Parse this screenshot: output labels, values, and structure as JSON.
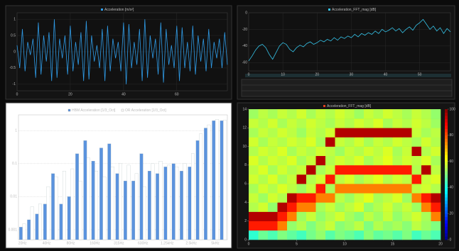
{
  "chart_data": [
    {
      "type": "line",
      "title": "Acceleration [m/s²]",
      "color": "#2f9be6",
      "x": [
        0,
        1,
        2,
        3,
        4,
        5,
        6,
        7,
        8,
        9,
        10,
        11,
        12,
        13,
        14,
        15,
        16,
        17,
        18,
        19,
        20,
        21,
        22,
        23,
        24,
        25,
        26,
        27,
        28,
        29,
        30,
        31,
        32,
        33,
        34,
        35,
        36,
        37,
        38,
        39,
        40,
        41,
        42,
        43,
        44,
        45,
        46,
        47,
        48,
        49,
        50,
        51,
        52,
        53,
        54,
        55,
        56,
        57,
        58,
        59,
        60,
        61,
        62,
        63,
        64,
        65,
        66,
        67,
        68,
        69,
        70,
        71,
        72,
        73,
        74,
        75,
        76,
        77,
        78,
        79
      ],
      "values": [
        0.2,
        -0.5,
        0.7,
        -0.6,
        0.3,
        -0.1,
        0.4,
        -0.8,
        0.9,
        -0.7,
        0.5,
        -0.3,
        0.6,
        -0.9,
        1.0,
        -0.8,
        0.4,
        -0.2,
        0.5,
        -0.7,
        0.8,
        -0.6,
        0.3,
        -0.4,
        0.6,
        -0.9,
        0.95,
        -0.85,
        0.5,
        -0.3,
        0.2,
        -0.5,
        0.7,
        -0.9,
        0.8,
        -0.6,
        0.4,
        -0.2,
        0.3,
        -0.6,
        0.9,
        -1.0,
        0.85,
        -0.5,
        0.3,
        -0.4,
        0.7,
        -0.9,
        1.0,
        -0.8,
        0.5,
        -0.2,
        0.4,
        -0.7,
        0.9,
        -0.95,
        0.7,
        -0.4,
        0.2,
        -0.5,
        0.8,
        -0.9,
        0.75,
        -0.5,
        0.3,
        -0.6,
        0.8,
        -0.7,
        0.5,
        -0.3,
        0.4,
        -0.6,
        0.7,
        -0.5,
        0.3,
        -0.2,
        0.4,
        -0.5,
        0.6,
        -0.4
      ],
      "xlim": [
        0,
        79
      ],
      "xticks": [
        0,
        20,
        40,
        60
      ],
      "ylim": [
        -1.2,
        1.2
      ],
      "yticks": [
        -1,
        -0.5,
        0,
        0.5,
        1
      ]
    },
    {
      "type": "line",
      "title": "Acceleration_FFT_mag [dB]",
      "color": "#35c3e8",
      "x": [
        0,
        1,
        2,
        3,
        4,
        5,
        6,
        7,
        8,
        9,
        10,
        11,
        12,
        13,
        14,
        15,
        16,
        17,
        18,
        19,
        20,
        21,
        22,
        23,
        24,
        25,
        26,
        27,
        28,
        29,
        30,
        31,
        32,
        33,
        34,
        35,
        36,
        37,
        38,
        39,
        40,
        41,
        42,
        43,
        44,
        45,
        46,
        47,
        48,
        49,
        50,
        51,
        52,
        53,
        54,
        55,
        56,
        57,
        58,
        59
      ],
      "values": [
        -58,
        -52,
        -45,
        -40,
        -38,
        -42,
        -50,
        -56,
        -48,
        -40,
        -36,
        -38,
        -44,
        -47,
        -42,
        -39,
        -41,
        -37,
        -35,
        -38,
        -36,
        -33,
        -35,
        -32,
        -34,
        -30,
        -33,
        -29,
        -31,
        -28,
        -30,
        -26,
        -29,
        -25,
        -27,
        -24,
        -26,
        -22,
        -25,
        -20,
        -23,
        -21,
        -18,
        -22,
        -19,
        -24,
        -20,
        -17,
        -21,
        -15,
        -12,
        -8,
        -14,
        -20,
        -16,
        -22,
        -18,
        -25,
        -19,
        -23
      ],
      "xlim": [
        0,
        59
      ],
      "xticks": [
        0,
        10,
        20,
        30,
        40,
        50
      ],
      "ylim": [
        -70,
        0
      ],
      "yticks": [
        -60,
        -40,
        -20,
        0
      ]
    },
    {
      "type": "bar",
      "log": true,
      "categories": [
        "20Hz",
        null,
        null,
        "40Hz",
        null,
        null,
        "80Hz",
        null,
        null,
        "160Hz",
        null,
        null,
        "315Hz",
        null,
        null,
        "630Hz",
        null,
        null,
        "1.25kHz",
        null,
        null,
        "2.5kHz",
        null,
        null,
        "5kHz",
        null
      ],
      "series": [
        {
          "name": "HBM Acceleration [1/3_Oct]",
          "color": "#5b93de",
          "values": [
            0.0012,
            0.002,
            0.003,
            0.006,
            0.05,
            0.006,
            0.01,
            0.2,
            0.5,
            0.12,
            0.3,
            0.4,
            0.05,
            0.03,
            0.03,
            0.2,
            0.06,
            0.05,
            0.08,
            0.1,
            0.06,
            0.08,
            0.5,
            1.2,
            2.0,
            2.0
          ]
        },
        {
          "name": "OR Acceleration [1/3_Oct]",
          "color": "#ffffff",
          "values": [
            0.0015,
            0.005,
            0.006,
            0.02,
            0.04,
            0.06,
            0.07,
            0.03,
            0.15,
            0.06,
            0.04,
            0.08,
            0.1,
            0.09,
            0.05,
            0.02,
            0.1,
            0.12,
            0.09,
            0.08,
            0.1,
            0.2,
            0.8,
            1.5,
            2.2,
            2.1
          ]
        }
      ],
      "ylim": [
        0.0005,
        3
      ],
      "yticks": [
        0.001,
        0.01,
        0.1,
        1
      ]
    },
    {
      "type": "heatmap",
      "title": "Acceleration_FFT_mag [dB]",
      "z": [
        [
          42,
          48,
          45,
          50,
          47,
          44,
          49,
          52,
          46,
          50,
          48,
          45,
          51,
          47,
          49,
          46,
          50,
          44,
          48,
          45
        ],
        [
          85,
          85,
          85,
          75,
          52,
          55,
          50,
          54,
          57,
          51,
          53,
          56,
          50,
          55,
          52,
          54,
          51,
          56,
          53,
          50
        ],
        [
          95,
          95,
          95,
          85,
          75,
          53,
          57,
          52,
          55,
          58,
          54,
          51,
          56,
          53,
          57,
          52,
          55,
          58,
          54,
          75
        ],
        [
          55,
          58,
          52,
          95,
          85,
          75,
          75,
          54,
          57,
          53,
          56,
          59,
          52,
          55,
          58,
          54,
          57,
          53,
          75,
          85
        ],
        [
          57,
          53,
          58,
          55,
          95,
          85,
          85,
          75,
          75,
          56,
          53,
          57,
          60,
          54,
          56,
          59,
          53,
          75,
          85,
          95
        ],
        [
          54,
          58,
          55,
          59,
          56,
          53,
          57,
          85,
          54,
          75,
          75,
          75,
          75,
          75,
          75,
          75,
          75,
          56,
          58,
          55
        ],
        [
          58,
          55,
          59,
          54,
          57,
          95,
          55,
          58,
          85,
          56,
          59,
          54,
          57,
          60,
          55,
          58,
          56,
          85,
          57,
          59
        ],
        [
          56,
          59,
          54,
          58,
          55,
          57,
          95,
          54,
          57,
          85,
          85,
          85,
          85,
          85,
          85,
          85,
          85,
          55,
          95,
          56
        ],
        [
          59,
          55,
          58,
          56,
          59,
          54,
          57,
          95,
          55,
          58,
          56,
          59,
          54,
          57,
          60,
          55,
          58,
          56,
          59,
          54
        ],
        [
          55,
          58,
          56,
          59,
          54,
          57,
          55,
          58,
          56,
          53,
          57,
          55,
          58,
          56,
          59,
          54,
          57,
          95,
          55,
          58
        ],
        [
          58,
          54,
          57,
          55,
          58,
          56,
          59,
          54,
          95,
          57,
          55,
          58,
          54,
          57,
          55,
          58,
          56,
          54,
          58,
          55
        ],
        [
          54,
          57,
          55,
          58,
          56,
          53,
          57,
          55,
          58,
          95,
          95,
          95,
          95,
          95,
          95,
          95,
          95,
          57,
          54,
          56
        ],
        [
          57,
          55,
          58,
          54,
          57,
          55,
          58,
          56,
          54,
          57,
          55,
          58,
          56,
          59,
          54,
          57,
          55,
          58,
          56,
          53
        ],
        [
          53,
          56,
          54,
          57,
          55,
          58,
          54,
          57,
          55,
          58,
          56,
          53,
          57,
          55,
          58,
          56,
          54,
          57,
          55,
          52
        ]
      ],
      "xlim": [
        0,
        20
      ],
      "xticks": [
        0,
        5,
        10,
        15,
        20
      ],
      "ylim": [
        0,
        14
      ],
      "yticks": [
        0,
        2,
        4,
        6,
        8,
        10,
        12,
        14
      ],
      "zlim": [
        0,
        100
      ],
      "zticks": [
        0,
        20,
        40,
        60,
        80,
        100
      ]
    }
  ]
}
